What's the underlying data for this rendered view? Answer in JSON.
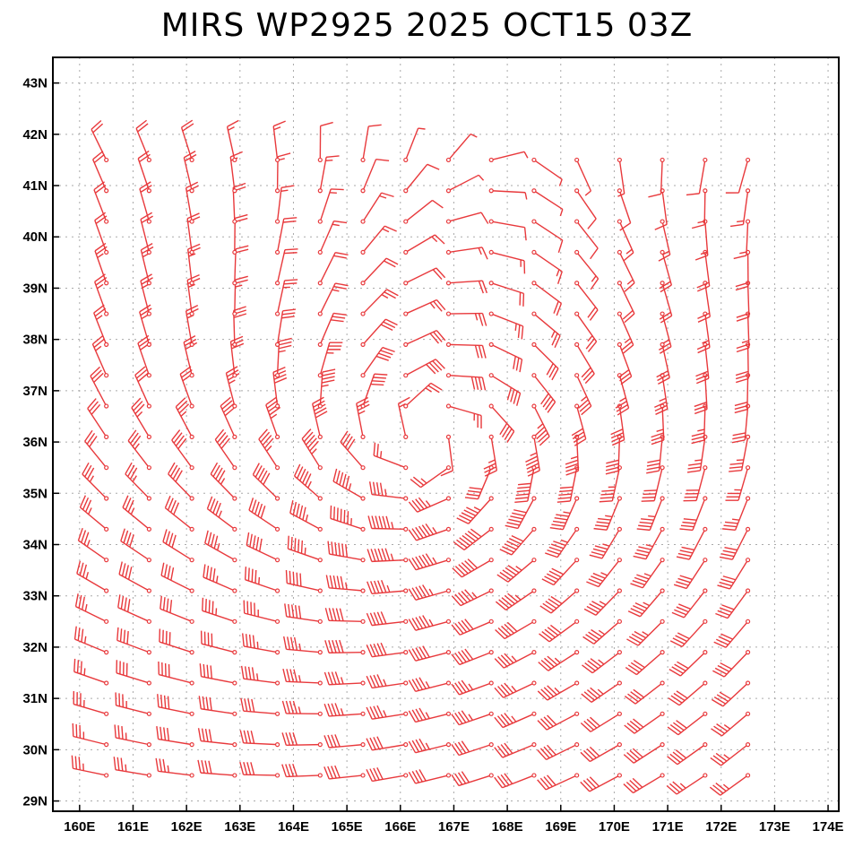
{
  "title": "MIRS WP2925 2025 OCT15 03Z",
  "colors": {
    "barb": "#e8393c",
    "frame": "#000000",
    "grid": "#aaaaaa"
  },
  "axes": {
    "lon_range": [
      159.5,
      174.2
    ],
    "lat_range": [
      28.8,
      43.5
    ],
    "lon_ticks": [
      "160E",
      "161E",
      "162E",
      "163E",
      "164E",
      "165E",
      "166E",
      "167E",
      "168E",
      "169E",
      "170E",
      "171E",
      "172E",
      "173E",
      "174E"
    ],
    "lat_ticks": [
      "29N",
      "30N",
      "31N",
      "32N",
      "33N",
      "34N",
      "35N",
      "36N",
      "37N",
      "38N",
      "39N",
      "40N",
      "41N",
      "42N",
      "43N"
    ]
  },
  "chart_data": {
    "type": "wind_barbs",
    "title": "MIRS WP2925 2025 OCT15 03Z",
    "grid": true,
    "xlim": [
      159.5,
      174.2
    ],
    "ylim": [
      28.8,
      43.5
    ],
    "storm_center": {
      "lon": 166.6,
      "lat": 35.7
    },
    "grid_lon_range": [
      160.5,
      172.6
    ],
    "grid_lat_range": [
      29.5,
      41.5
    ]
  }
}
